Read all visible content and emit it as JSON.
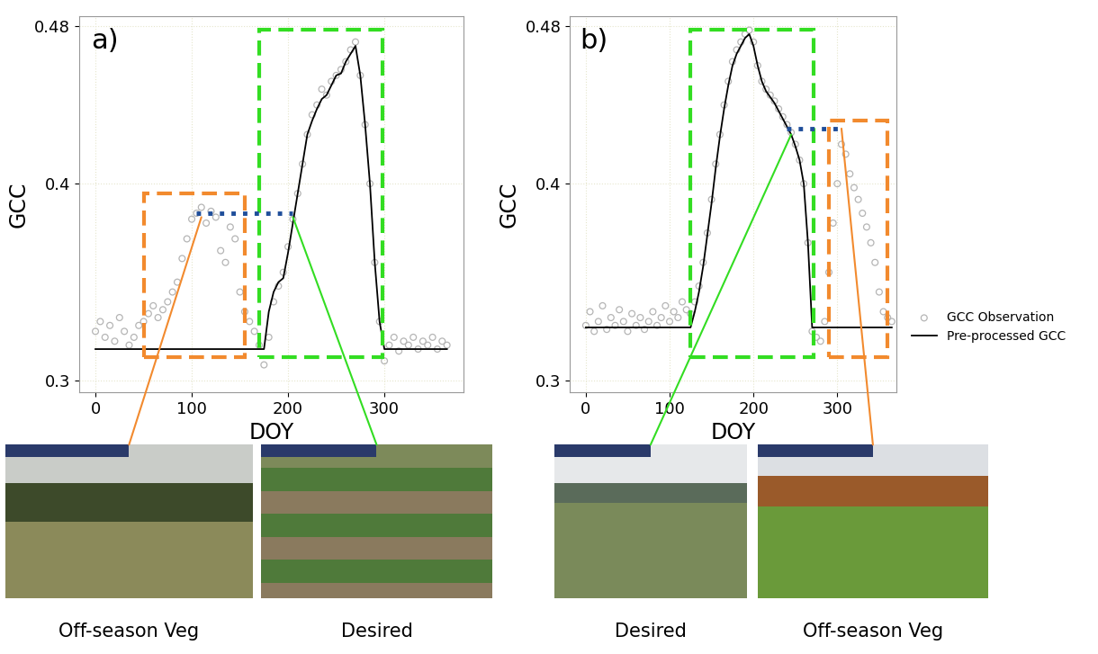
{
  "chart_data": [
    {
      "type": "scatter",
      "title": "a)",
      "x_label": "DOY",
      "y_label": "GCC",
      "xlim": [
        -17,
        382
      ],
      "ylim": [
        0.294,
        0.485
      ],
      "xticks": [
        0,
        100,
        200,
        300
      ],
      "yticks": [
        0.3,
        0.4,
        0.48
      ],
      "grid": true,
      "x": [
        0,
        5,
        10,
        15,
        20,
        25,
        30,
        35,
        40,
        45,
        50,
        55,
        60,
        65,
        70,
        75,
        80,
        85,
        90,
        95,
        100,
        105,
        110,
        115,
        120,
        125,
        130,
        135,
        140,
        145,
        150,
        155,
        160,
        165,
        170,
        175,
        180,
        185,
        190,
        195,
        200,
        205,
        210,
        215,
        220,
        225,
        230,
        235,
        240,
        245,
        250,
        255,
        260,
        265,
        270,
        275,
        280,
        285,
        290,
        295,
        300,
        305,
        310,
        315,
        320,
        325,
        330,
        335,
        340,
        345,
        350,
        355,
        360,
        365
      ],
      "series": [
        {
          "name": "GCC Observation",
          "type": "scatter",
          "color": "#b5b5b5",
          "marker": "o",
          "values": [
            0.325,
            0.33,
            0.322,
            0.328,
            0.32,
            0.332,
            0.325,
            0.318,
            0.322,
            0.328,
            0.33,
            0.334,
            0.338,
            0.332,
            0.336,
            0.34,
            0.345,
            0.35,
            0.362,
            0.372,
            0.382,
            0.385,
            0.388,
            0.38,
            0.386,
            0.383,
            0.366,
            0.36,
            0.378,
            0.372,
            0.345,
            0.335,
            0.33,
            0.325,
            0.318,
            0.308,
            0.322,
            0.34,
            0.348,
            0.355,
            0.368,
            0.382,
            0.395,
            0.41,
            0.425,
            0.435,
            0.44,
            0.448,
            0.445,
            0.452,
            0.455,
            0.458,
            0.462,
            0.468,
            0.472,
            0.455,
            0.43,
            0.4,
            0.36,
            0.33,
            0.31,
            0.318,
            0.322,
            0.315,
            0.32,
            0.318,
            0.322,
            0.316,
            0.32,
            0.318,
            0.322,
            0.316,
            0.32,
            0.318
          ]
        },
        {
          "name": "Pre-processed GCC",
          "type": "line",
          "color": "#000000",
          "line_style": "solid",
          "values": [
            0.316,
            0.316,
            0.316,
            0.316,
            0.316,
            0.316,
            0.316,
            0.316,
            0.316,
            0.316,
            0.316,
            0.316,
            0.316,
            0.316,
            0.316,
            0.316,
            0.316,
            0.316,
            0.316,
            0.316,
            0.316,
            0.316,
            0.316,
            0.316,
            0.316,
            0.316,
            0.316,
            0.316,
            0.316,
            0.316,
            0.316,
            0.316,
            0.316,
            0.316,
            0.316,
            0.316,
            0.335,
            0.345,
            0.35,
            0.352,
            0.365,
            0.38,
            0.395,
            0.41,
            0.425,
            0.432,
            0.438,
            0.443,
            0.445,
            0.45,
            0.455,
            0.456,
            0.462,
            0.466,
            0.47,
            0.455,
            0.43,
            0.4,
            0.36,
            0.33,
            0.316,
            0.316,
            0.316,
            0.316,
            0.316,
            0.316,
            0.316,
            0.316,
            0.316,
            0.316,
            0.316,
            0.316,
            0.316,
            0.316
          ]
        }
      ],
      "regions": [
        {
          "label": "Off-season Veg",
          "color": "#f28a2e",
          "x0": 50,
          "x1": 155,
          "y0": 0.312,
          "y1": 0.395,
          "point": [
            110,
            0.383
          ]
        },
        {
          "label": "Desired",
          "color": "#33dd22",
          "x0": 170,
          "x1": 298,
          "y0": 0.312,
          "y1": 0.478,
          "point": [
            205,
            0.383
          ]
        }
      ],
      "connector": {
        "x0": 105,
        "x1": 205,
        "y": 0.385,
        "color": "#1f4e9a",
        "line_style": "dotted"
      }
    },
    {
      "type": "scatter",
      "title": "b)",
      "x_label": "DOY",
      "y_label": "GCC",
      "xlim": [
        -19,
        370
      ],
      "ylim": [
        0.294,
        0.485
      ],
      "xticks": [
        0,
        100,
        200,
        300
      ],
      "yticks": [
        0.3,
        0.4,
        0.48
      ],
      "grid": true,
      "legend": "right",
      "x": [
        0,
        5,
        10,
        15,
        20,
        25,
        30,
        35,
        40,
        45,
        50,
        55,
        60,
        65,
        70,
        75,
        80,
        85,
        90,
        95,
        100,
        105,
        110,
        115,
        120,
        125,
        130,
        135,
        140,
        145,
        150,
        155,
        160,
        165,
        170,
        175,
        180,
        185,
        190,
        195,
        200,
        205,
        210,
        215,
        220,
        225,
        230,
        235,
        240,
        245,
        250,
        255,
        260,
        265,
        270,
        275,
        280,
        285,
        290,
        295,
        300,
        305,
        310,
        315,
        320,
        325,
        330,
        335,
        340,
        345,
        350,
        355,
        360,
        365
      ],
      "series": [
        {
          "name": "GCC Observation",
          "type": "scatter",
          "color": "#b5b5b5",
          "marker": "o",
          "values": [
            0.328,
            0.335,
            0.325,
            0.33,
            0.338,
            0.326,
            0.332,
            0.328,
            0.336,
            0.33,
            0.325,
            0.334,
            0.328,
            0.332,
            0.326,
            0.33,
            0.335,
            0.328,
            0.332,
            0.338,
            0.33,
            0.335,
            0.332,
            0.34,
            0.336,
            0.334,
            0.34,
            0.348,
            0.36,
            0.375,
            0.392,
            0.41,
            0.425,
            0.44,
            0.452,
            0.462,
            0.468,
            0.472,
            0.476,
            0.478,
            0.472,
            0.46,
            0.452,
            0.448,
            0.445,
            0.442,
            0.438,
            0.434,
            0.43,
            0.426,
            0.42,
            0.412,
            0.4,
            0.37,
            0.325,
            0.322,
            0.32,
            0.33,
            0.355,
            0.38,
            0.4,
            0.42,
            0.415,
            0.405,
            0.398,
            0.392,
            0.385,
            0.378,
            0.37,
            0.36,
            0.345,
            0.335,
            0.332,
            0.33
          ]
        },
        {
          "name": "Pre-processed GCC",
          "type": "line",
          "color": "#000000",
          "line_style": "solid",
          "values": [
            0.327,
            0.327,
            0.327,
            0.327,
            0.327,
            0.327,
            0.327,
            0.327,
            0.327,
            0.327,
            0.327,
            0.327,
            0.327,
            0.327,
            0.327,
            0.327,
            0.327,
            0.327,
            0.327,
            0.327,
            0.327,
            0.327,
            0.327,
            0.327,
            0.327,
            0.327,
            0.335,
            0.345,
            0.358,
            0.374,
            0.39,
            0.408,
            0.424,
            0.438,
            0.45,
            0.46,
            0.466,
            0.47,
            0.474,
            0.476,
            0.47,
            0.46,
            0.452,
            0.447,
            0.444,
            0.441,
            0.437,
            0.433,
            0.429,
            0.425,
            0.419,
            0.412,
            0.4,
            0.37,
            0.327,
            0.327,
            0.327,
            0.327,
            0.327,
            0.327,
            0.327,
            0.327,
            0.327,
            0.327,
            0.327,
            0.327,
            0.327,
            0.327,
            0.327,
            0.327,
            0.327,
            0.327,
            0.327,
            0.327
          ]
        }
      ],
      "regions": [
        {
          "label": "Desired",
          "color": "#33dd22",
          "x0": 125,
          "x1": 272,
          "y0": 0.312,
          "y1": 0.478,
          "point": [
            245,
            0.425
          ]
        },
        {
          "label": "Off-season Veg",
          "color": "#f28a2e",
          "x0": 290,
          "x1": 360,
          "y0": 0.312,
          "y1": 0.432,
          "point": [
            305,
            0.428
          ]
        }
      ],
      "connector": {
        "x0": 240,
        "x1": 305,
        "y": 0.428,
        "color": "#1f4e9a",
        "line_style": "dotted"
      }
    }
  ]
}
